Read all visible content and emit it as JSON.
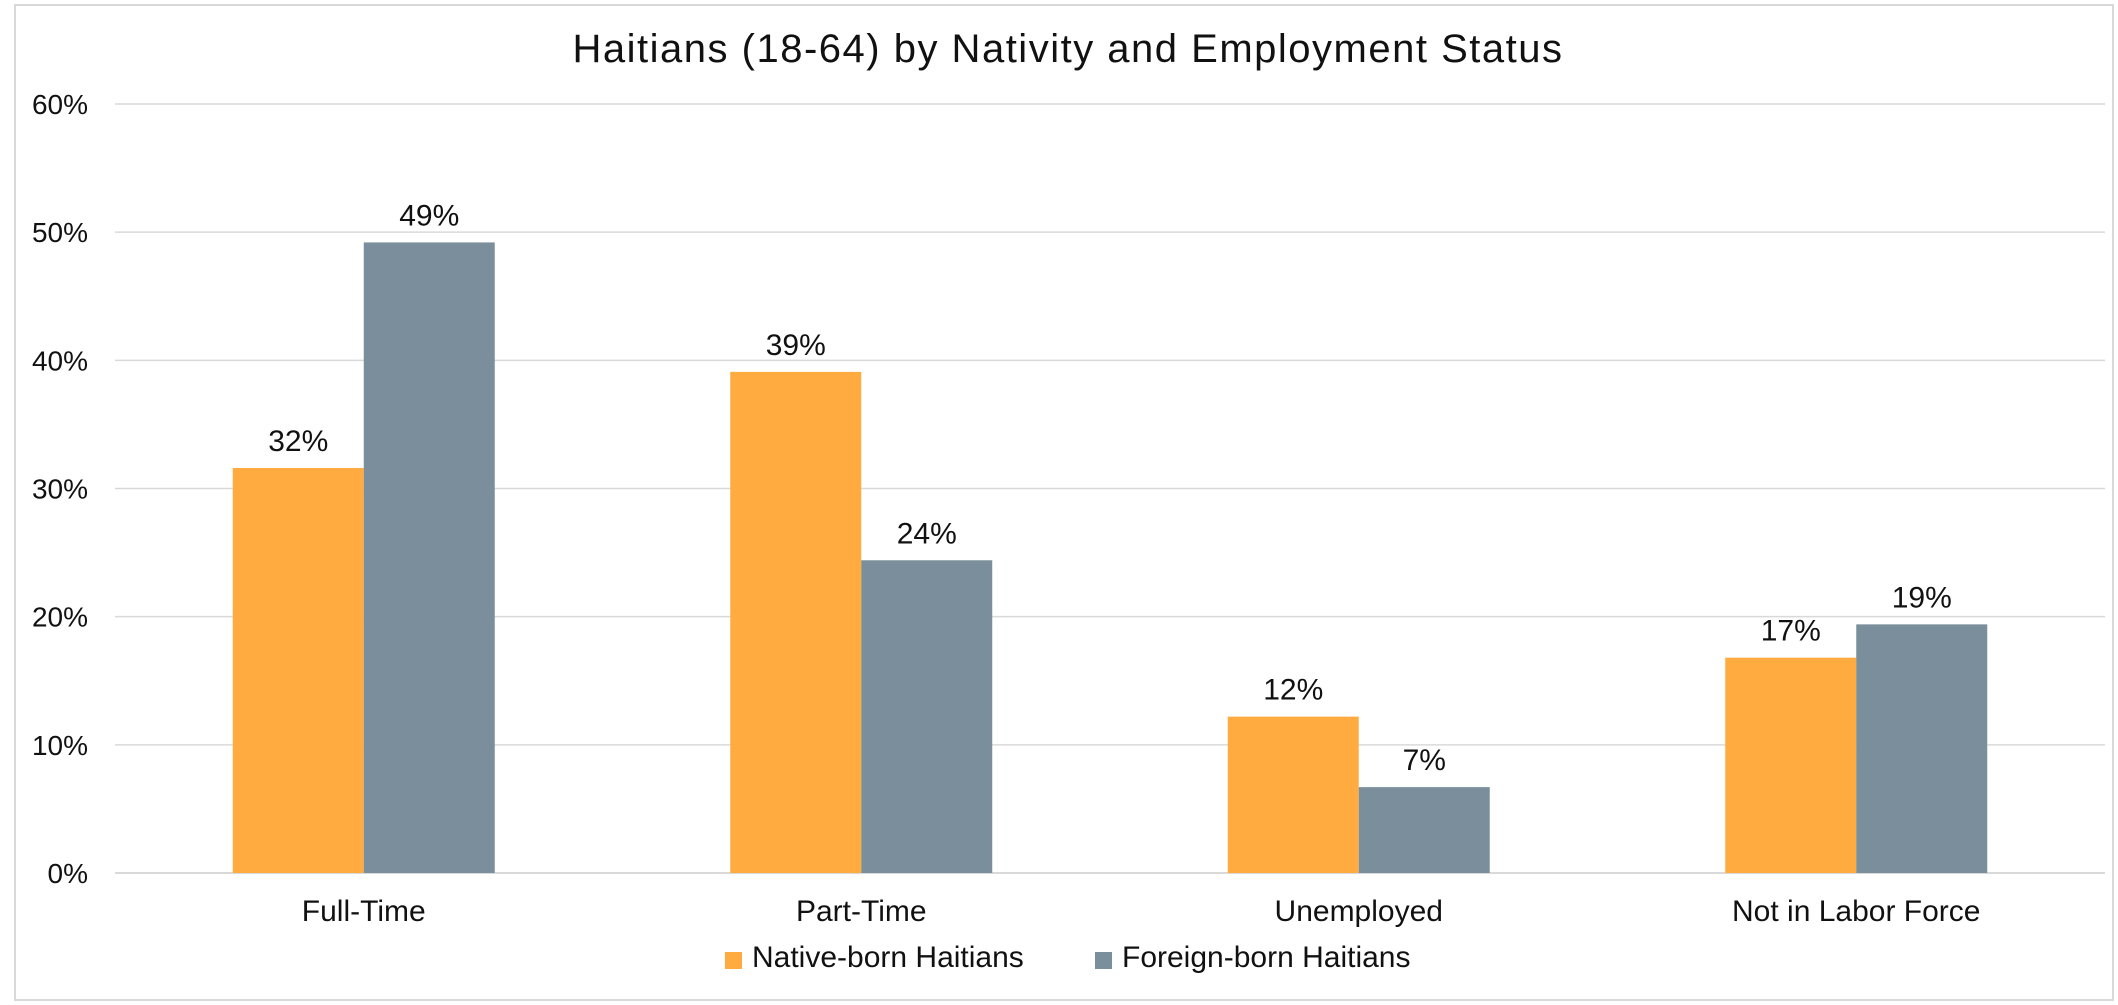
{
  "chart_data": {
    "type": "bar",
    "title": "Haitians (18-64) by Nativity and Employment Status",
    "xlabel": "",
    "ylabel": "",
    "categories": [
      "Full-Time",
      "Part-Time",
      "Unemployed",
      "Not in Labor Force"
    ],
    "series": [
      {
        "name": "Native-born Haitians",
        "color": "#FFAB40",
        "values": [
          31.6,
          39.1,
          12.2,
          16.8
        ],
        "labels": [
          "32%",
          "39%",
          "12%",
          "17%"
        ]
      },
      {
        "name": "Foreign-born Haitians",
        "color": "#7A8F9B",
        "values": [
          49.2,
          24.4,
          6.7,
          19.4
        ],
        "labels": [
          "49%",
          "24%",
          "7%",
          "19%"
        ]
      }
    ],
    "ylim": [
      0,
      60
    ],
    "yticks": [
      0,
      10,
      20,
      30,
      40,
      50,
      60
    ],
    "ytick_labels": [
      "0%",
      "10%",
      "20%",
      "30%",
      "40%",
      "50%",
      "60%"
    ],
    "grid": true,
    "legend_position": "bottom",
    "colors": {
      "gridline": "#D9D9D9",
      "axis": "#D9D9D9",
      "border": "#D9D9D9"
    }
  }
}
